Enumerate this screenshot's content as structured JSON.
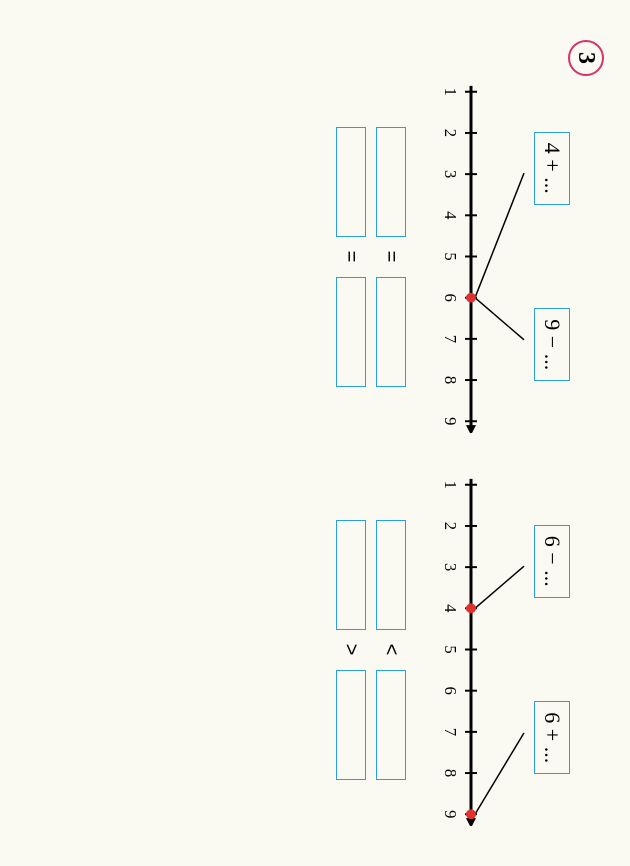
{
  "problem_number": "3",
  "colors": {
    "page_bg": "#fbfaf2",
    "outer_bg": "#f6f4ea",
    "box_border": "#2aa0d8",
    "number_circle": "#d6336c",
    "axis": "#000000",
    "dot": "#e03131",
    "text": "#000000"
  },
  "left": {
    "expressions": {
      "a": "4 + ...",
      "b": "9 − ..."
    },
    "numberline": {
      "min": 1,
      "max": 9,
      "step": 1,
      "ticks": [
        "1",
        "2",
        "3",
        "4",
        "5",
        "6",
        "7",
        "8",
        "9"
      ],
      "dots": [
        6
      ],
      "connectors": [
        {
          "from_expr": "a",
          "to_value": 6
        },
        {
          "from_expr": "b",
          "to_value": 6
        }
      ]
    },
    "answers": {
      "row1_op": "=",
      "row2_op": "="
    }
  },
  "right": {
    "expressions": {
      "a": "6 − ...",
      "b": "6 + ..."
    },
    "numberline": {
      "min": 1,
      "max": 9,
      "step": 1,
      "ticks": [
        "1",
        "2",
        "3",
        "4",
        "5",
        "6",
        "7",
        "8",
        "9"
      ],
      "dots": [
        4,
        9
      ],
      "connectors": [
        {
          "from_expr": "a",
          "to_value": 4
        },
        {
          "from_expr": "b",
          "to_value": 9
        }
      ]
    },
    "answers": {
      "row1_op": "<",
      "row2_op": ">"
    }
  }
}
